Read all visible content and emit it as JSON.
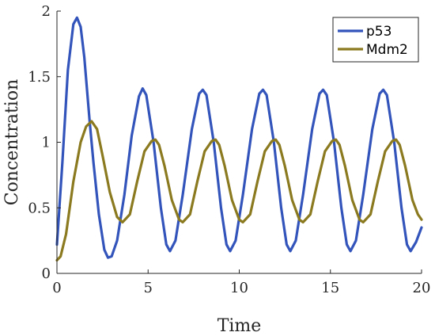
{
  "chart_data": {
    "type": "line",
    "xlabel": "Time",
    "ylabel": "Concentration",
    "xlim": [
      0,
      20
    ],
    "ylim": [
      0,
      2
    ],
    "xticks": [
      0,
      5,
      10,
      15,
      20
    ],
    "xtick_labels": [
      "0",
      "5",
      "10",
      "15",
      "20"
    ],
    "yticks": [
      0,
      0.5,
      1,
      1.5,
      2
    ],
    "ytick_labels": [
      "0",
      "0.5",
      "1",
      "1.5",
      "2"
    ],
    "grid": false,
    "legend_position": "top-right",
    "series": [
      {
        "name": "p53",
        "color": "#3355bb",
        "points": [
          [
            0.0,
            0.22
          ],
          [
            0.3,
            0.85
          ],
          [
            0.6,
            1.55
          ],
          [
            0.9,
            1.9
          ],
          [
            1.1,
            1.95
          ],
          [
            1.3,
            1.88
          ],
          [
            1.5,
            1.65
          ],
          [
            1.8,
            1.15
          ],
          [
            2.0,
            0.85
          ],
          [
            2.3,
            0.45
          ],
          [
            2.6,
            0.18
          ],
          [
            2.8,
            0.12
          ],
          [
            3.0,
            0.13
          ],
          [
            3.3,
            0.25
          ],
          [
            3.7,
            0.6
          ],
          [
            4.1,
            1.05
          ],
          [
            4.5,
            1.35
          ],
          [
            4.7,
            1.41
          ],
          [
            4.9,
            1.36
          ],
          [
            5.3,
            1.0
          ],
          [
            5.7,
            0.5
          ],
          [
            6.0,
            0.22
          ],
          [
            6.2,
            0.17
          ],
          [
            6.5,
            0.25
          ],
          [
            6.9,
            0.6
          ],
          [
            7.4,
            1.1
          ],
          [
            7.8,
            1.37
          ],
          [
            8.0,
            1.4
          ],
          [
            8.2,
            1.36
          ],
          [
            8.6,
            1.0
          ],
          [
            9.0,
            0.5
          ],
          [
            9.3,
            0.22
          ],
          [
            9.5,
            0.17
          ],
          [
            9.8,
            0.25
          ],
          [
            10.2,
            0.6
          ],
          [
            10.7,
            1.1
          ],
          [
            11.1,
            1.37
          ],
          [
            11.3,
            1.4
          ],
          [
            11.5,
            1.36
          ],
          [
            11.9,
            1.0
          ],
          [
            12.3,
            0.5
          ],
          [
            12.6,
            0.22
          ],
          [
            12.8,
            0.17
          ],
          [
            13.1,
            0.25
          ],
          [
            13.5,
            0.6
          ],
          [
            14.0,
            1.1
          ],
          [
            14.4,
            1.37
          ],
          [
            14.6,
            1.4
          ],
          [
            14.8,
            1.36
          ],
          [
            15.2,
            1.0
          ],
          [
            15.6,
            0.5
          ],
          [
            15.9,
            0.22
          ],
          [
            16.1,
            0.17
          ],
          [
            16.4,
            0.25
          ],
          [
            16.8,
            0.6
          ],
          [
            17.3,
            1.1
          ],
          [
            17.7,
            1.37
          ],
          [
            17.9,
            1.4
          ],
          [
            18.1,
            1.36
          ],
          [
            18.5,
            1.0
          ],
          [
            18.9,
            0.5
          ],
          [
            19.2,
            0.22
          ],
          [
            19.4,
            0.17
          ],
          [
            19.7,
            0.24
          ],
          [
            20.0,
            0.35
          ]
        ]
      },
      {
        "name": "Mdm2",
        "color": "#8b7a1f",
        "points": [
          [
            0.0,
            0.1
          ],
          [
            0.2,
            0.13
          ],
          [
            0.5,
            0.3
          ],
          [
            0.9,
            0.7
          ],
          [
            1.3,
            1.0
          ],
          [
            1.6,
            1.12
          ],
          [
            1.9,
            1.16
          ],
          [
            2.2,
            1.1
          ],
          [
            2.5,
            0.9
          ],
          [
            2.9,
            0.62
          ],
          [
            3.3,
            0.43
          ],
          [
            3.6,
            0.39
          ],
          [
            4.0,
            0.45
          ],
          [
            4.4,
            0.7
          ],
          [
            4.8,
            0.93
          ],
          [
            5.2,
            1.01
          ],
          [
            5.4,
            1.02
          ],
          [
            5.6,
            0.98
          ],
          [
            5.9,
            0.82
          ],
          [
            6.3,
            0.56
          ],
          [
            6.7,
            0.41
          ],
          [
            6.9,
            0.39
          ],
          [
            7.3,
            0.45
          ],
          [
            7.7,
            0.7
          ],
          [
            8.1,
            0.93
          ],
          [
            8.5,
            1.01
          ],
          [
            8.7,
            1.02
          ],
          [
            8.9,
            0.98
          ],
          [
            9.2,
            0.82
          ],
          [
            9.6,
            0.56
          ],
          [
            10.0,
            0.41
          ],
          [
            10.2,
            0.39
          ],
          [
            10.6,
            0.45
          ],
          [
            11.0,
            0.7
          ],
          [
            11.4,
            0.93
          ],
          [
            11.8,
            1.01
          ],
          [
            12.0,
            1.02
          ],
          [
            12.2,
            0.98
          ],
          [
            12.5,
            0.82
          ],
          [
            12.9,
            0.56
          ],
          [
            13.3,
            0.41
          ],
          [
            13.5,
            0.39
          ],
          [
            13.9,
            0.45
          ],
          [
            14.3,
            0.7
          ],
          [
            14.7,
            0.93
          ],
          [
            15.1,
            1.01
          ],
          [
            15.3,
            1.02
          ],
          [
            15.5,
            0.98
          ],
          [
            15.8,
            0.82
          ],
          [
            16.2,
            0.56
          ],
          [
            16.6,
            0.41
          ],
          [
            16.8,
            0.39
          ],
          [
            17.2,
            0.45
          ],
          [
            17.6,
            0.7
          ],
          [
            18.0,
            0.93
          ],
          [
            18.4,
            1.01
          ],
          [
            18.6,
            1.02
          ],
          [
            18.8,
            0.98
          ],
          [
            19.1,
            0.82
          ],
          [
            19.5,
            0.56
          ],
          [
            19.8,
            0.45
          ],
          [
            20.0,
            0.41
          ]
        ]
      }
    ]
  }
}
